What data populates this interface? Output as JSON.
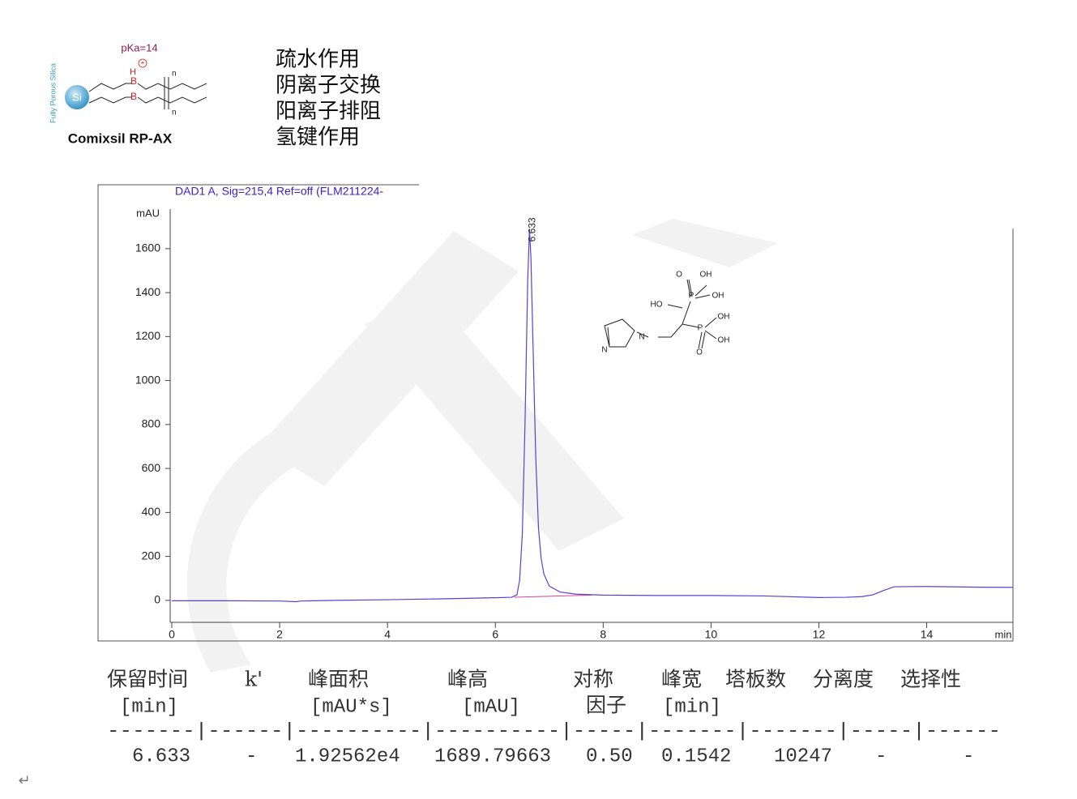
{
  "header": {
    "pka": "pKa=14",
    "support": "Fully Porous Silica",
    "si": "Si",
    "boron": [
      "B",
      "B"
    ],
    "hydrogen": "H",
    "n_labels": [
      "n",
      "n"
    ],
    "product": "Comixsil RP-AX",
    "modes": [
      "疏水作用",
      "阴离子交换",
      "阳离子排阻",
      "氢键作用"
    ]
  },
  "chart_data": {
    "type": "line",
    "title": "DAD1 A, Sig=215,4 Ref=off (FLM211224-",
    "ylabel": "mAU",
    "xlabel": "min",
    "xlim": [
      0,
      15.6
    ],
    "ylim": [
      -100,
      1700
    ],
    "xticks": [
      0,
      2,
      4,
      6,
      8,
      10,
      12,
      14
    ],
    "yticks": [
      0,
      200,
      400,
      600,
      800,
      1000,
      1200,
      1400,
      1600
    ],
    "x": [
      0,
      1,
      2,
      2.3,
      2.4,
      3,
      4,
      5,
      6,
      6.3,
      6.4,
      6.45,
      6.5,
      6.55,
      6.6,
      6.633,
      6.66,
      6.7,
      6.75,
      6.8,
      6.85,
      6.9,
      7.0,
      7.2,
      7.5,
      8,
      9,
      10,
      11,
      12,
      12.5,
      12.8,
      13.0,
      13.2,
      13.4,
      14,
      15,
      15.6
    ],
    "series": [
      {
        "color": "#5b3fd6",
        "values": [
          -2,
          -2,
          -3,
          -6,
          -3,
          0,
          3,
          7,
          12,
          14,
          25,
          90,
          300,
          800,
          1450,
          1690,
          1560,
          1150,
          650,
          330,
          190,
          120,
          65,
          38,
          28,
          24,
          22,
          22,
          20,
          13,
          14,
          17,
          25,
          45,
          62,
          63,
          60,
          59
        ]
      }
    ],
    "peak_label": "6.633",
    "integration_baseline": {
      "color": "#e0409a",
      "x": [
        6.35,
        7.8
      ],
      "values": [
        14,
        24
      ]
    }
  },
  "molecule": {
    "labels": [
      "O",
      "OH",
      "P",
      "OH",
      "HO",
      "OH",
      "P",
      "OH",
      "O",
      "N",
      "N"
    ]
  },
  "table": {
    "header_1": [
      "保留时间",
      "k'",
      "峰面积",
      "峰高",
      "对称",
      "峰宽",
      "塔板数",
      "分离度",
      "选择性"
    ],
    "header_2": [
      "[min]",
      "[mAU*s]",
      "[mAU]",
      "因子",
      "[min]"
    ],
    "separator": "-------|------|----------|----------|-----|-------|-------|-----|------",
    "row": [
      "6.633",
      "-",
      "1.92562e4",
      "1689.79663",
      "0.50",
      "0.1542",
      "10247",
      "-",
      "-"
    ]
  },
  "paragraph_mark": "↵"
}
